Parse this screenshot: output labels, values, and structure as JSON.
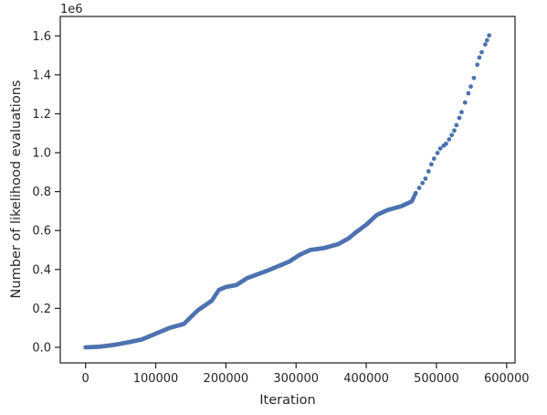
{
  "chart_data": {
    "type": "scatter",
    "title": "",
    "xlabel": "Iteration",
    "ylabel": "Number of likelihood evaluations",
    "y_offset_label": "1e6",
    "xlim": [
      -36000,
      612000
    ],
    "ylim": [
      -80000,
      1700000
    ],
    "x_ticks": [
      0,
      100000,
      200000,
      300000,
      400000,
      500000,
      600000
    ],
    "x_tick_labels": [
      "0",
      "100000",
      "200000",
      "300000",
      "400000",
      "500000",
      "600000"
    ],
    "y_ticks": [
      0,
      200000,
      400000,
      600000,
      800000,
      1000000,
      1200000,
      1400000,
      1600000
    ],
    "y_tick_labels": [
      "0.0",
      "0.2",
      "0.4",
      "0.6",
      "0.8",
      "1.0",
      "1.2",
      "1.4",
      "1.6"
    ],
    "grid": false,
    "marker_color": "#4c72b0",
    "anchors": [
      [
        0,
        0
      ],
      [
        20000,
        3000
      ],
      [
        40000,
        12000
      ],
      [
        60000,
        25000
      ],
      [
        80000,
        40000
      ],
      [
        100000,
        70000
      ],
      [
        120000,
        100000
      ],
      [
        140000,
        120000
      ],
      [
        160000,
        190000
      ],
      [
        180000,
        240000
      ],
      [
        190000,
        295000
      ],
      [
        200000,
        310000
      ],
      [
        215000,
        320000
      ],
      [
        230000,
        355000
      ],
      [
        260000,
        395000
      ],
      [
        290000,
        440000
      ],
      [
        305000,
        475000
      ],
      [
        320000,
        500000
      ],
      [
        340000,
        510000
      ],
      [
        360000,
        530000
      ],
      [
        375000,
        560000
      ],
      [
        385000,
        590000
      ],
      [
        400000,
        630000
      ],
      [
        415000,
        680000
      ],
      [
        430000,
        705000
      ],
      [
        450000,
        725000
      ],
      [
        465000,
        750000
      ],
      [
        470000,
        790000
      ],
      [
        485000,
        870000
      ],
      [
        495000,
        960000
      ],
      [
        505000,
        1020000
      ],
      [
        515000,
        1050000
      ],
      [
        525000,
        1110000
      ],
      [
        535000,
        1200000
      ],
      [
        545000,
        1300000
      ],
      [
        555000,
        1400000
      ],
      [
        560000,
        1480000
      ],
      [
        570000,
        1560000
      ],
      [
        576000,
        1610000
      ]
    ]
  }
}
